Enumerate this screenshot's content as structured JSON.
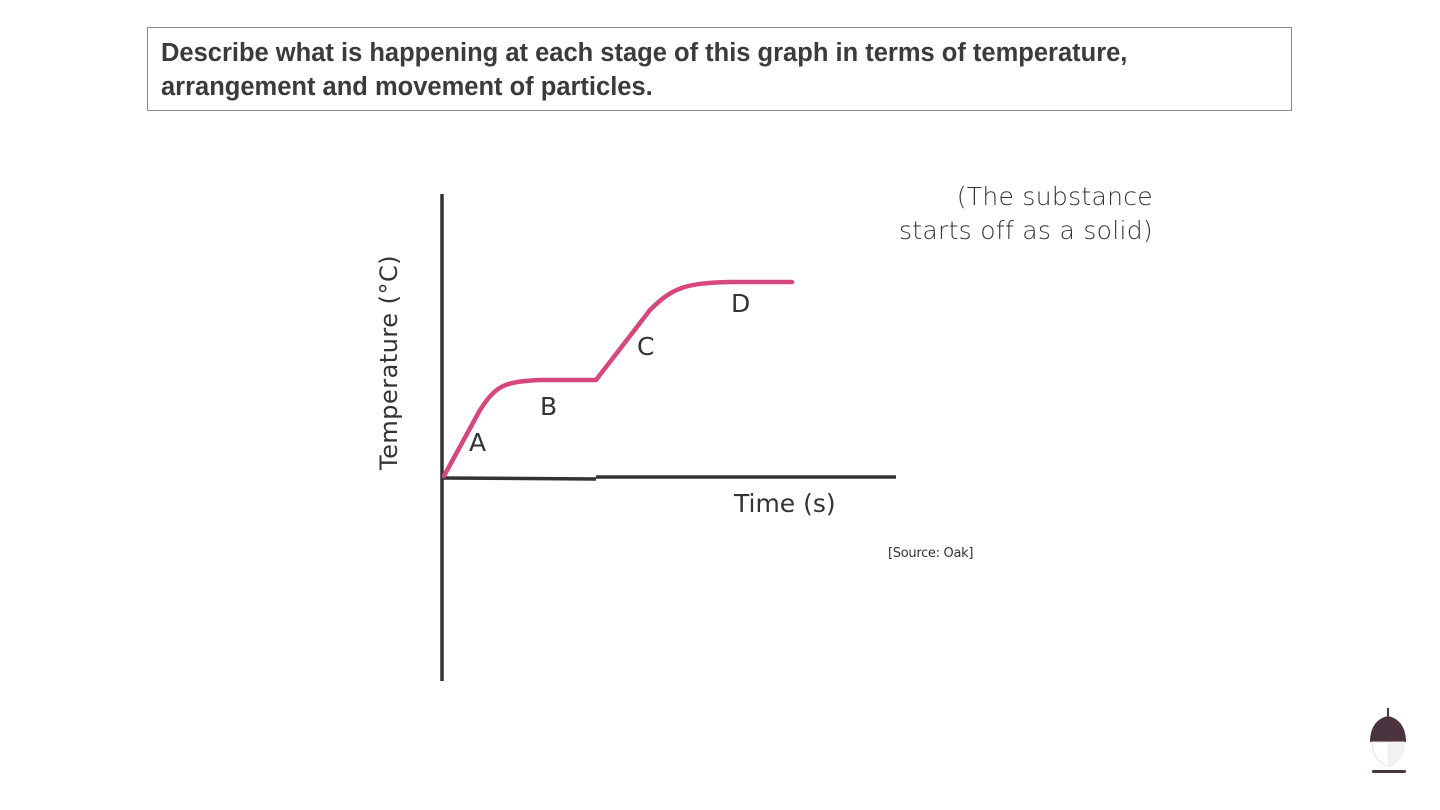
{
  "question": {
    "text": "Describe what is happening at each stage of this graph in terms of temperature, arrangement and movement of particles."
  },
  "chart_data": {
    "type": "line",
    "ylabel": "Temperature (°C)",
    "xlabel": "Time (s)",
    "stages": [
      {
        "label": "A",
        "description": "rising"
      },
      {
        "label": "B",
        "description": "flat"
      },
      {
        "label": "C",
        "description": "rising"
      },
      {
        "label": "D",
        "description": "flat"
      }
    ],
    "curve_color": "#d6477d",
    "axis_color": "#333333"
  },
  "note": {
    "line1": "(The substance",
    "line2": "starts off as a solid)"
  },
  "source": "[Source: Oak]",
  "logo": {
    "icon": "acorn-icon",
    "color": "#4b3340"
  }
}
